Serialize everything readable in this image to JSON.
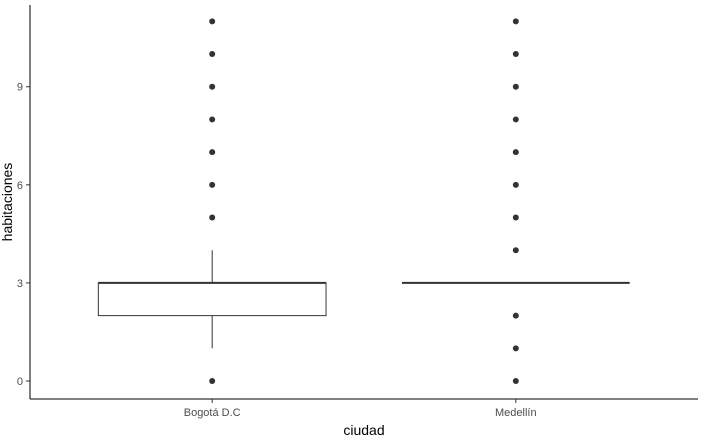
{
  "chart_data": {
    "type": "boxplot",
    "xlabel": "ciudad",
    "ylabel": "habitaciones",
    "categories": [
      "Bogotá D.C",
      "Medellín"
    ],
    "yticks": [
      0,
      3,
      6,
      9
    ],
    "ylim": [
      -0.55,
      11.5
    ],
    "grid": false,
    "boxes": [
      {
        "category": "Bogotá D.C",
        "min": 1,
        "q1": 2,
        "median": 3,
        "q3": 3,
        "max": 4,
        "outliers": [
          0,
          5,
          6,
          7,
          8,
          9,
          10,
          11
        ]
      },
      {
        "category": "Medellín",
        "min": 3,
        "q1": 3,
        "median": 3,
        "q3": 3,
        "max": 3,
        "outliers": [
          0,
          1,
          2,
          4,
          5,
          6,
          7,
          8,
          9,
          10,
          11
        ]
      }
    ],
    "colors": {
      "box_stroke": "#333333",
      "box_fill": "#ffffff",
      "outlier": "#333333",
      "axis": "#000000",
      "tick_text": "#4d4d4d"
    }
  }
}
